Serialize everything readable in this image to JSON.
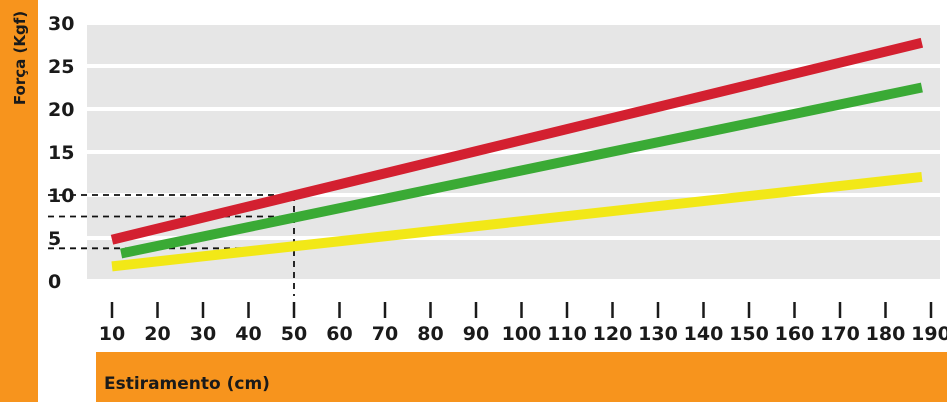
{
  "chart_data": {
    "type": "line",
    "title": "",
    "xlabel": "Estiramento (cm)",
    "ylabel": "Força (Kgf)",
    "x_ticks": [
      10,
      20,
      30,
      40,
      50,
      60,
      70,
      80,
      90,
      100,
      110,
      120,
      130,
      140,
      150,
      160,
      170,
      180,
      190
    ],
    "y_ticks": [
      0,
      5,
      10,
      15,
      20,
      25,
      30
    ],
    "xlim": [
      10,
      190
    ],
    "ylim": [
      0,
      30
    ],
    "grid": "horizontal bands",
    "series": [
      {
        "color": "#d32030",
        "points": [
          [
            10,
            4.8
          ],
          [
            188,
            27.7
          ]
        ]
      },
      {
        "color": "#3aaa35",
        "points": [
          [
            12,
            3.2
          ],
          [
            188,
            22.5
          ]
        ]
      },
      {
        "color": "#f2e817",
        "points": [
          [
            10,
            1.7
          ],
          [
            188,
            12.1
          ]
        ]
      }
    ],
    "reference_lines": [
      {
        "x": 50,
        "y": 10
      },
      {
        "x": 50,
        "y": 7.5
      },
      {
        "x": 50,
        "y": 3.8
      }
    ]
  },
  "colors": {
    "accent": "#f7941d",
    "band": "#e6e6e6",
    "text": "#1a1a1a"
  }
}
